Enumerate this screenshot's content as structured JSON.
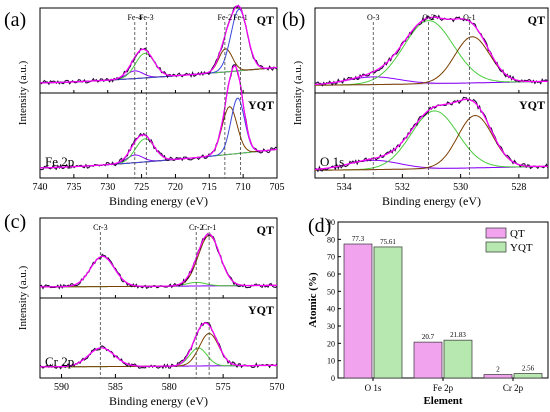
{
  "chart_data": [
    {
      "panel": "(a)",
      "type": "line",
      "xlabel": "Binding energy (eV)",
      "ylabel": "Intensity (a.u.)",
      "xlim": [
        740,
        705
      ],
      "x_ticks": [
        740,
        735,
        730,
        725,
        720,
        715,
        710,
        705
      ],
      "sample_labels": [
        "QT",
        "YQT"
      ],
      "element_label": "Fe 2p",
      "peak_labels": [
        {
          "label": "Fe-4",
          "x": 726.0
        },
        {
          "label": "Fe-3",
          "x": 724.3
        },
        {
          "label": "Fe-2",
          "x": 712.7
        },
        {
          "label": "Fe-1",
          "x": 710.4
        }
      ],
      "spectra": [
        {
          "name": "QT",
          "background": [
            0.08,
            0.28
          ],
          "peaks": [
            {
              "center": 726.0,
              "height": 0.1,
              "width": 1.2
            },
            {
              "center": 724.5,
              "height": 0.32,
              "width": 1.4
            },
            {
              "center": 712.6,
              "height": 0.3,
              "width": 1.0
            },
            {
              "center": 710.6,
              "height": 0.8,
              "width": 1.2
            }
          ]
        },
        {
          "name": "YQT",
          "background": [
            0.08,
            0.32
          ],
          "peaks": [
            {
              "center": 726.0,
              "height": 0.1,
              "width": 1.2
            },
            {
              "center": 724.5,
              "height": 0.3,
              "width": 1.4
            },
            {
              "center": 712.0,
              "height": 0.62,
              "width": 1.1
            },
            {
              "center": 710.8,
              "height": 0.72,
              "width": 1.0
            }
          ]
        }
      ]
    },
    {
      "panel": "(b)",
      "type": "line",
      "xlabel": "Binding energy (eV)",
      "ylabel": "Intensity (a.u.)",
      "xlim": [
        535,
        527
      ],
      "x_ticks": [
        534,
        532,
        530,
        528
      ],
      "sample_labels": [
        "QT",
        "YQT"
      ],
      "element_label": "O 1s",
      "peak_labels": [
        {
          "label": "O-3",
          "x": 533.0
        },
        {
          "label": "O-2",
          "x": 531.1
        },
        {
          "label": "O-1",
          "x": 529.7
        }
      ],
      "spectra": [
        {
          "name": "QT",
          "background": [
            0.05,
            0.1
          ],
          "peaks": [
            {
              "center": 533.0,
              "height": 0.1,
              "width": 0.9
            },
            {
              "center": 531.1,
              "height": 0.82,
              "width": 0.85
            },
            {
              "center": 529.6,
              "height": 0.6,
              "width": 0.6
            }
          ]
        },
        {
          "name": "YQT",
          "background": [
            0.05,
            0.1
          ],
          "peaks": [
            {
              "center": 533.0,
              "height": 0.12,
              "width": 0.9
            },
            {
              "center": 530.9,
              "height": 0.75,
              "width": 0.8
            },
            {
              "center": 529.5,
              "height": 0.68,
              "width": 0.6
            }
          ]
        }
      ]
    },
    {
      "panel": "(c)",
      "type": "line",
      "xlabel": "Binding energy (eV)",
      "ylabel": "Intensity (a.u.)",
      "xlim": [
        592,
        570
      ],
      "x_ticks": [
        590,
        585,
        580,
        575,
        570
      ],
      "sample_labels": [
        "QT",
        "YQT"
      ],
      "element_label": "Cr 2p",
      "peak_labels": [
        {
          "label": "Cr-3",
          "x": 586.4
        },
        {
          "label": "Cr-2",
          "x": 577.5
        },
        {
          "label": "Cr-1",
          "x": 576.3
        }
      ],
      "spectra": [
        {
          "name": "QT",
          "background": [
            0.1,
            0.12
          ],
          "peaks": [
            {
              "center": 586.2,
              "height": 0.42,
              "width": 1.1
            },
            {
              "center": 577.5,
              "height": 0.05,
              "width": 0.9
            },
            {
              "center": 576.3,
              "height": 0.7,
              "width": 1.0
            }
          ]
        },
        {
          "name": "YQT",
          "background": [
            0.1,
            0.12
          ],
          "peaks": [
            {
              "center": 586.3,
              "height": 0.26,
              "width": 1.2
            },
            {
              "center": 577.3,
              "height": 0.25,
              "width": 0.8
            },
            {
              "center": 576.3,
              "height": 0.45,
              "width": 0.9
            }
          ]
        }
      ]
    },
    {
      "panel": "(d)",
      "type": "bar",
      "xlabel": "Element",
      "ylabel": "Atomic (%)",
      "categories": [
        "O 1s",
        "Fe 2p",
        "Cr 2p"
      ],
      "series": [
        {
          "name": "QT",
          "values": [
            77.3,
            20.7,
            2
          ],
          "labels": [
            "77.3",
            "20.7",
            "2"
          ],
          "color": "#f2a3ee"
        },
        {
          "name": "YQT",
          "values": [
            75.61,
            21.83,
            2.56
          ],
          "labels": [
            "75.61",
            "21.83",
            "2.56"
          ],
          "color": "#b6e8b0"
        }
      ],
      "ylim": [
        0,
        90
      ],
      "y_ticks": [
        0,
        10,
        20,
        30,
        40,
        50,
        60,
        70,
        80,
        90
      ],
      "legend_position": "top-right"
    }
  ],
  "colors": {
    "raw": "#2b0a3d",
    "fit": "#ff00ff",
    "background": "#c7a9c2",
    "peaks": [
      "#8b00ff",
      "#4bcc3e",
      "#7b3f00",
      "#3a47d8"
    ]
  }
}
